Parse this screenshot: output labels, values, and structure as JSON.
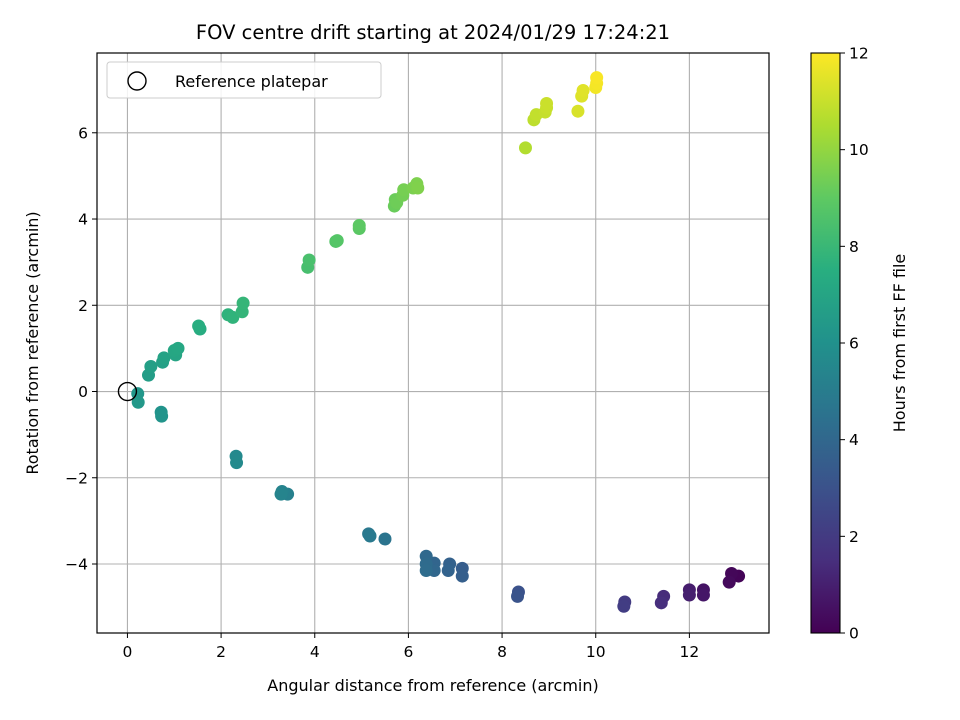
{
  "chart_data": {
    "type": "scatter",
    "title": "FOV centre drift starting at 2024/01/29 17:24:21",
    "xlabel": "Angular distance from reference (arcmin)",
    "ylabel": "Rotation from reference (arcmin)",
    "xlim": [
      -0.65,
      13.7
    ],
    "ylim": [
      -5.6,
      7.85
    ],
    "xticks": [
      0,
      2,
      4,
      6,
      8,
      10,
      12
    ],
    "yticks": [
      -4,
      -2,
      0,
      2,
      4,
      6
    ],
    "grid": true,
    "colormap": "viridis",
    "colorbar": {
      "label": "Hours from first FF file",
      "range": [
        0,
        12
      ],
      "ticks": [
        0,
        2,
        4,
        6,
        8,
        10,
        12
      ]
    },
    "legend": {
      "placement": "top-left",
      "entries": [
        "Reference platepar"
      ]
    },
    "reference_point": {
      "x": 0,
      "y": 0
    },
    "points": [
      {
        "x": 13.05,
        "y": -4.28,
        "c": 0.1
      },
      {
        "x": 12.9,
        "y": -4.22,
        "c": 0.2
      },
      {
        "x": 12.85,
        "y": -4.42,
        "c": 0.3
      },
      {
        "x": 12.3,
        "y": -4.6,
        "c": 0.6
      },
      {
        "x": 12.3,
        "y": -4.72,
        "c": 0.7
      },
      {
        "x": 12.0,
        "y": -4.6,
        "c": 0.9
      },
      {
        "x": 12.0,
        "y": -4.72,
        "c": 1.0
      },
      {
        "x": 11.45,
        "y": -4.75,
        "c": 1.4
      },
      {
        "x": 11.4,
        "y": -4.9,
        "c": 1.5
      },
      {
        "x": 10.62,
        "y": -4.88,
        "c": 2.0
      },
      {
        "x": 10.6,
        "y": -4.98,
        "c": 2.1
      },
      {
        "x": 8.35,
        "y": -4.65,
        "c": 3.0
      },
      {
        "x": 8.33,
        "y": -4.75,
        "c": 3.1
      },
      {
        "x": 7.15,
        "y": -4.1,
        "c": 3.5
      },
      {
        "x": 7.15,
        "y": -4.28,
        "c": 3.6
      },
      {
        "x": 6.88,
        "y": -4.0,
        "c": 3.7
      },
      {
        "x": 6.85,
        "y": -4.15,
        "c": 3.8
      },
      {
        "x": 6.55,
        "y": -3.98,
        "c": 3.9
      },
      {
        "x": 6.55,
        "y": -4.15,
        "c": 4.0
      },
      {
        "x": 6.38,
        "y": -3.82,
        "c": 4.1
      },
      {
        "x": 6.38,
        "y": -4.0,
        "c": 4.15
      },
      {
        "x": 6.38,
        "y": -4.15,
        "c": 4.2
      },
      {
        "x": 5.5,
        "y": -3.42,
        "c": 4.6
      },
      {
        "x": 5.15,
        "y": -3.3,
        "c": 4.8
      },
      {
        "x": 5.18,
        "y": -3.35,
        "c": 4.85
      },
      {
        "x": 3.42,
        "y": -2.38,
        "c": 5.2
      },
      {
        "x": 3.3,
        "y": -2.32,
        "c": 5.3
      },
      {
        "x": 3.28,
        "y": -2.38,
        "c": 5.35
      },
      {
        "x": 2.32,
        "y": -1.5,
        "c": 5.6
      },
      {
        "x": 2.33,
        "y": -1.65,
        "c": 5.65
      },
      {
        "x": 0.72,
        "y": -0.48,
        "c": 6.1
      },
      {
        "x": 0.73,
        "y": -0.57,
        "c": 6.15
      },
      {
        "x": 0.22,
        "y": -0.05,
        "c": 6.3
      },
      {
        "x": 0.23,
        "y": -0.25,
        "c": 6.35
      },
      {
        "x": 0.45,
        "y": 0.38,
        "c": 6.6
      },
      {
        "x": 0.5,
        "y": 0.58,
        "c": 6.7
      },
      {
        "x": 0.75,
        "y": 0.68,
        "c": 6.8
      },
      {
        "x": 0.78,
        "y": 0.78,
        "c": 6.9
      },
      {
        "x": 1.03,
        "y": 0.85,
        "c": 7.0
      },
      {
        "x": 1.0,
        "y": 0.95,
        "c": 7.1
      },
      {
        "x": 1.08,
        "y": 1.0,
        "c": 7.15
      },
      {
        "x": 1.55,
        "y": 1.45,
        "c": 7.4
      },
      {
        "x": 1.52,
        "y": 1.52,
        "c": 7.45
      },
      {
        "x": 2.15,
        "y": 1.78,
        "c": 7.7
      },
      {
        "x": 2.25,
        "y": 1.72,
        "c": 7.75
      },
      {
        "x": 2.45,
        "y": 1.85,
        "c": 7.85
      },
      {
        "x": 2.47,
        "y": 2.05,
        "c": 7.9
      },
      {
        "x": 3.85,
        "y": 2.88,
        "c": 8.4
      },
      {
        "x": 3.88,
        "y": 3.05,
        "c": 8.45
      },
      {
        "x": 4.45,
        "y": 3.48,
        "c": 8.7
      },
      {
        "x": 4.48,
        "y": 3.5,
        "c": 8.75
      },
      {
        "x": 4.95,
        "y": 3.78,
        "c": 8.9
      },
      {
        "x": 4.95,
        "y": 3.85,
        "c": 8.95
      },
      {
        "x": 5.7,
        "y": 4.3,
        "c": 9.2
      },
      {
        "x": 5.72,
        "y": 4.45,
        "c": 9.25
      },
      {
        "x": 5.75,
        "y": 4.38,
        "c": 9.3
      },
      {
        "x": 5.88,
        "y": 4.55,
        "c": 9.4
      },
      {
        "x": 5.9,
        "y": 4.68,
        "c": 9.45
      },
      {
        "x": 6.1,
        "y": 4.72,
        "c": 9.55
      },
      {
        "x": 6.18,
        "y": 4.82,
        "c": 9.6
      },
      {
        "x": 6.2,
        "y": 4.72,
        "c": 9.65
      },
      {
        "x": 8.5,
        "y": 5.65,
        "c": 10.6
      },
      {
        "x": 8.68,
        "y": 6.3,
        "c": 10.8
      },
      {
        "x": 8.73,
        "y": 6.42,
        "c": 10.9
      },
      {
        "x": 8.92,
        "y": 6.48,
        "c": 10.95
      },
      {
        "x": 8.95,
        "y": 6.58,
        "c": 11.0
      },
      {
        "x": 8.95,
        "y": 6.68,
        "c": 11.05
      },
      {
        "x": 9.62,
        "y": 6.5,
        "c": 11.3
      },
      {
        "x": 9.7,
        "y": 6.85,
        "c": 11.4
      },
      {
        "x": 9.73,
        "y": 6.98,
        "c": 11.45
      },
      {
        "x": 10.0,
        "y": 7.05,
        "c": 11.8
      },
      {
        "x": 10.02,
        "y": 7.15,
        "c": 11.85
      },
      {
        "x": 10.02,
        "y": 7.28,
        "c": 11.9
      }
    ]
  }
}
